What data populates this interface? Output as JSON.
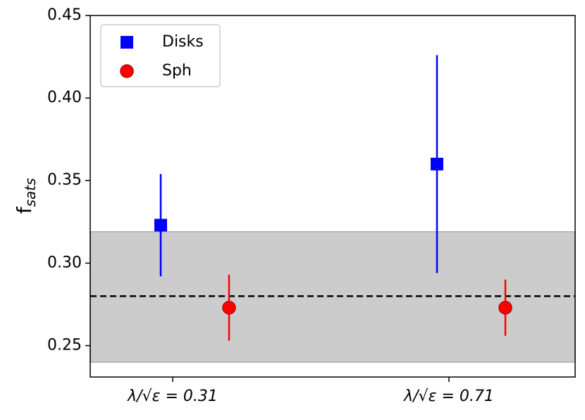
{
  "chart_data": {
    "type": "errorbar",
    "ylabel": "f",
    "ylabel_subscript": "sats",
    "categories": [
      "λ/√ε = 0.31",
      "λ/√ε = 0.71"
    ],
    "series": [
      {
        "name": "Disks",
        "color": "#0000ff",
        "marker": "square",
        "values": [
          0.323,
          0.36
        ],
        "errors": [
          0.031,
          0.066
        ]
      },
      {
        "name": "Sph",
        "color": "#ff0000",
        "marker": "circle",
        "values": [
          0.273,
          0.273
        ],
        "errors": [
          0.02,
          0.017
        ]
      }
    ],
    "hline": 0.28,
    "band": [
      0.24,
      0.319
    ],
    "ylim": [
      0.231,
      0.45
    ],
    "yticks": [
      {
        "value": 0.25,
        "label": "0.25"
      },
      {
        "value": 0.3,
        "label": "0.30"
      },
      {
        "value": 0.35,
        "label": "0.35"
      },
      {
        "value": 0.4,
        "label": "0.40"
      },
      {
        "value": 0.45,
        "label": "0.45"
      }
    ],
    "legend": "upper left"
  }
}
